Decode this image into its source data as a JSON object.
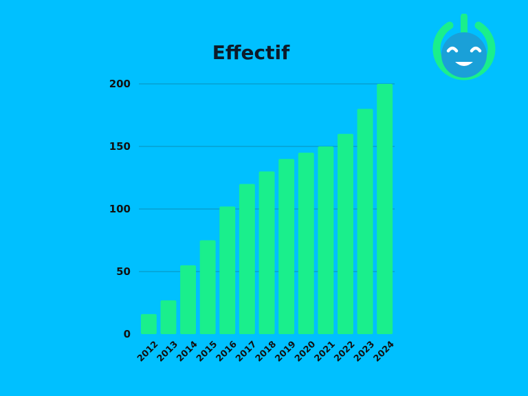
{
  "chart_data": {
    "type": "bar",
    "title": "Effectif",
    "xlabel": "",
    "ylabel": "",
    "categories": [
      "2012",
      "2013",
      "2014",
      "2015",
      "2016",
      "2017",
      "2018",
      "2019",
      "2020",
      "2021",
      "2022",
      "2023",
      "2024"
    ],
    "values": [
      16,
      27,
      55,
      75,
      102,
      120,
      130,
      140,
      145,
      150,
      160,
      180,
      200
    ],
    "ylim": [
      0,
      200
    ],
    "yticks": [
      "0",
      "50",
      "100",
      "150",
      "200"
    ],
    "grid": true,
    "legend": "none",
    "x_tick_rotation": "-45deg",
    "colors": {
      "background": "#00c0ff",
      "bar": "#1aef8c",
      "grid": "#0a8fb8",
      "text": "#111111"
    }
  },
  "logo": {
    "icon": "smiley-power-icon",
    "colors": {
      "ring": "#1aef8c",
      "face": "#1aa0d8",
      "features": "#ffffff"
    }
  }
}
